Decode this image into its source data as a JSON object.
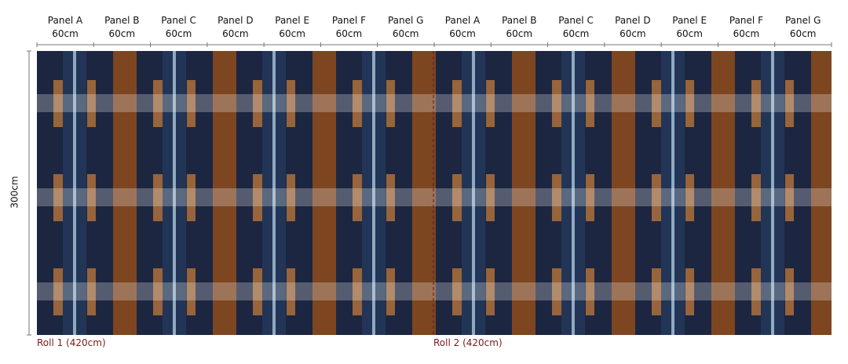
{
  "panels": [
    {
      "name": "Panel A",
      "width": "60cm"
    },
    {
      "name": "Panel B",
      "width": "60cm"
    },
    {
      "name": "Panel C",
      "width": "60cm"
    },
    {
      "name": "Panel D",
      "width": "60cm"
    },
    {
      "name": "Panel E",
      "width": "60cm"
    },
    {
      "name": "Panel F",
      "width": "60cm"
    },
    {
      "name": "Panel G",
      "width": "60cm"
    },
    {
      "name": "Panel A",
      "width": "60cm"
    },
    {
      "name": "Panel B",
      "width": "60cm"
    },
    {
      "name": "Panel C",
      "width": "60cm"
    },
    {
      "name": "Panel D",
      "width": "60cm"
    },
    {
      "name": "Panel E",
      "width": "60cm"
    },
    {
      "name": "Panel F",
      "width": "60cm"
    },
    {
      "name": "Panel G",
      "width": "60cm"
    }
  ],
  "height_label": "300cm",
  "rolls": [
    {
      "label": "Roll 1 (420cm)"
    },
    {
      "label": "Roll 2 (420cm)"
    }
  ],
  "colors": {
    "navy": "#1c2640",
    "mid_blue": "#233556",
    "light_stripe": "#8fa9c0",
    "brown": "#7d4620",
    "orange": "#97643b",
    "band": "#ffffff",
    "roll_label": "#7a1a1a"
  }
}
